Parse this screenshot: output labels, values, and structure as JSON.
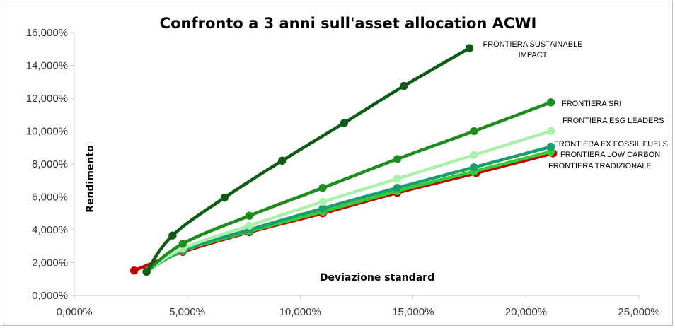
{
  "chart_data": {
    "type": "line",
    "title": "Confronto a 3 anni sull'asset allocation ACWI",
    "xlabel": "Deviazione standard",
    "ylabel": "Rendimento",
    "xlim": [
      0,
      25
    ],
    "ylim": [
      0,
      16
    ],
    "x_ticks": [
      "0,000%",
      "5,000%",
      "10,000%",
      "15,000%",
      "20,000%",
      "25,000%"
    ],
    "y_ticks": [
      "0,000%",
      "2,000%",
      "4,000%",
      "6,000%",
      "8,000%",
      "10,000%",
      "12,000%",
      "14,000%",
      "16,000%"
    ],
    "grid": false,
    "series": [
      {
        "name": "FRONTIERA TRADIZIONALE",
        "color": "#c00000",
        "label_lines": [
          "FRONTIERA TRADIZIONALE"
        ],
        "points": [
          [
            2.65,
            1.52
          ],
          [
            4.8,
            2.65
          ],
          [
            7.75,
            3.85
          ],
          [
            11.0,
            5.0
          ],
          [
            14.3,
            6.25
          ],
          [
            17.8,
            7.45
          ],
          [
            21.2,
            8.65
          ]
        ]
      },
      {
        "name": "FRONTIERA LOW CARBON",
        "color": "#33cc33",
        "label_lines": [
          "FRONTIERA LOW CARBON"
        ],
        "points": [
          [
            3.2,
            1.45
          ],
          [
            4.8,
            2.7
          ],
          [
            7.75,
            3.9
          ],
          [
            11.0,
            5.1
          ],
          [
            14.3,
            6.35
          ],
          [
            17.7,
            7.55
          ],
          [
            21.1,
            8.75
          ]
        ]
      },
      {
        "name": "FRONTIERA EX FOSSIL FUELS",
        "color": "#1a9e6e",
        "label_lines": [
          "FRONTIERA EX FOSSIL FUELS"
        ],
        "points": [
          [
            3.2,
            1.45
          ],
          [
            4.8,
            2.75
          ],
          [
            7.75,
            4.0
          ],
          [
            11.0,
            5.3
          ],
          [
            14.3,
            6.55
          ],
          [
            17.7,
            7.8
          ],
          [
            21.1,
            9.05
          ]
        ]
      },
      {
        "name": "FRONTIERA ESG LEADERS",
        "color": "#aaf0aa",
        "label_lines": [
          "FRONTIERA ESG LEADERS"
        ],
        "points": [
          [
            3.2,
            1.45
          ],
          [
            4.8,
            2.85
          ],
          [
            7.75,
            4.25
          ],
          [
            11.0,
            5.7
          ],
          [
            14.3,
            7.1
          ],
          [
            17.7,
            8.55
          ],
          [
            21.1,
            10.0
          ]
        ]
      },
      {
        "name": "FRONTIERA SRI",
        "color": "#1e8c1e",
        "label_lines": [
          "FRONTIERA SRI"
        ],
        "points": [
          [
            3.2,
            1.45
          ],
          [
            4.8,
            3.15
          ],
          [
            7.75,
            4.85
          ],
          [
            11.0,
            6.55
          ],
          [
            14.3,
            8.3
          ],
          [
            17.7,
            10.0
          ],
          [
            21.1,
            11.75
          ]
        ]
      },
      {
        "name": "FRONTIERA SUSTAINABLE IMPACT",
        "color": "#0f5a14",
        "label_lines": [
          "FRONTIERA SUSTAINABLE",
          "IMPACT"
        ],
        "points": [
          [
            3.2,
            1.45
          ],
          [
            4.35,
            3.65
          ],
          [
            6.65,
            5.95
          ],
          [
            9.2,
            8.2
          ],
          [
            11.95,
            10.5
          ],
          [
            14.6,
            12.75
          ],
          [
            17.5,
            15.05
          ]
        ]
      }
    ]
  }
}
